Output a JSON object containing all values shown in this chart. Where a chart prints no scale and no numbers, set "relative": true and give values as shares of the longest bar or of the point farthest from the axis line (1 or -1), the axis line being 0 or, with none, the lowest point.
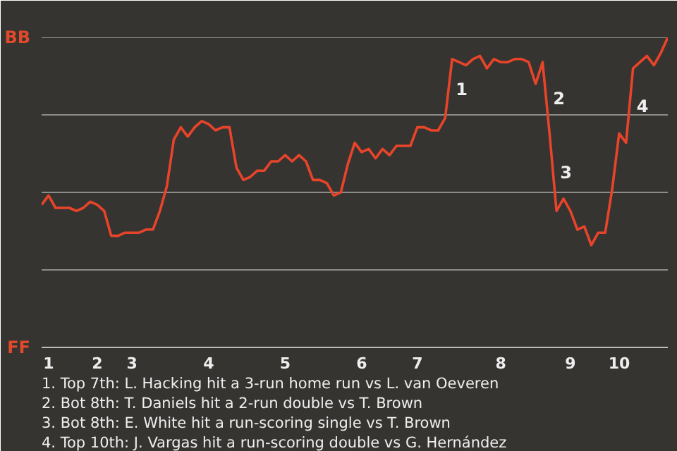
{
  "chart_data": {
    "type": "line",
    "relative": true,
    "categories": [
      null,
      "1",
      null,
      null,
      null,
      null,
      null,
      null,
      "2",
      null,
      null,
      null,
      null,
      "3",
      null,
      null,
      null,
      null,
      null,
      null,
      null,
      null,
      null,
      null,
      "4",
      null,
      null,
      null,
      null,
      null,
      null,
      null,
      null,
      null,
      null,
      "5",
      null,
      null,
      null,
      null,
      null,
      null,
      null,
      null,
      null,
      null,
      "6",
      null,
      null,
      null,
      null,
      null,
      null,
      null,
      "7",
      null,
      null,
      null,
      null,
      null,
      null,
      null,
      null,
      null,
      null,
      null,
      "8",
      null,
      null,
      null,
      null,
      null,
      null,
      null,
      null,
      null,
      "9",
      null,
      null,
      null,
      null,
      null,
      null,
      "10",
      null,
      null,
      null,
      null,
      null,
      null,
      null
    ],
    "series": [
      {
        "color": "#e8442a",
        "values": [
          0.46,
          0.49,
          0.45,
          0.45,
          0.45,
          0.44,
          0.45,
          0.47,
          0.46,
          0.44,
          0.36,
          0.36,
          0.37,
          0.37,
          0.37,
          0.38,
          0.38,
          0.44,
          0.52,
          0.67,
          0.71,
          0.68,
          0.71,
          0.73,
          0.72,
          0.7,
          0.71,
          0.71,
          0.58,
          0.54,
          0.55,
          0.57,
          0.57,
          0.6,
          0.6,
          0.62,
          0.6,
          0.62,
          0.6,
          0.54,
          0.54,
          0.53,
          0.49,
          0.5,
          0.59,
          0.66,
          0.63,
          0.64,
          0.61,
          0.64,
          0.62,
          0.65,
          0.65,
          0.65,
          0.71,
          0.71,
          0.7,
          0.7,
          0.74,
          0.93,
          0.92,
          0.91,
          0.93,
          0.94,
          0.9,
          0.93,
          0.92,
          0.92,
          0.93,
          0.93,
          0.92,
          0.85,
          0.92,
          0.69,
          0.44,
          0.48,
          0.44,
          0.38,
          0.39,
          0.33,
          0.37,
          0.37,
          0.51,
          0.69,
          0.66,
          0.9,
          0.92,
          0.94,
          0.91,
          0.95,
          1.0
        ]
      }
    ],
    "grid": false,
    "marker": "none",
    "line_style": "solid",
    "ref_lines": [
      {
        "axis": "y",
        "value": 0.25,
        "color": "#8c8c8c"
      },
      {
        "axis": "y",
        "value": 0.5,
        "color": "#8c8c8c"
      },
      {
        "axis": "y",
        "value": 0.75,
        "color": "#8c8c8c"
      },
      {
        "axis": "y",
        "value": 1,
        "color": "#8c8c8c"
      }
    ],
    "annotations": [
      "BB",
      "FF",
      "1",
      "2",
      "3",
      "4",
      "1. Top 7th: L. Hacking hit a 3-run home run vs L. van Oeveren",
      "2. Bot 8th: T. Daniels hit a 2-run double vs T. Brown",
      "3. Bot 8th: E. White hit a run-scoring single vs T. Brown",
      "4. Top 10th: J. Vargas hit a run-scoring double vs G. Hernández"
    ]
  }
}
